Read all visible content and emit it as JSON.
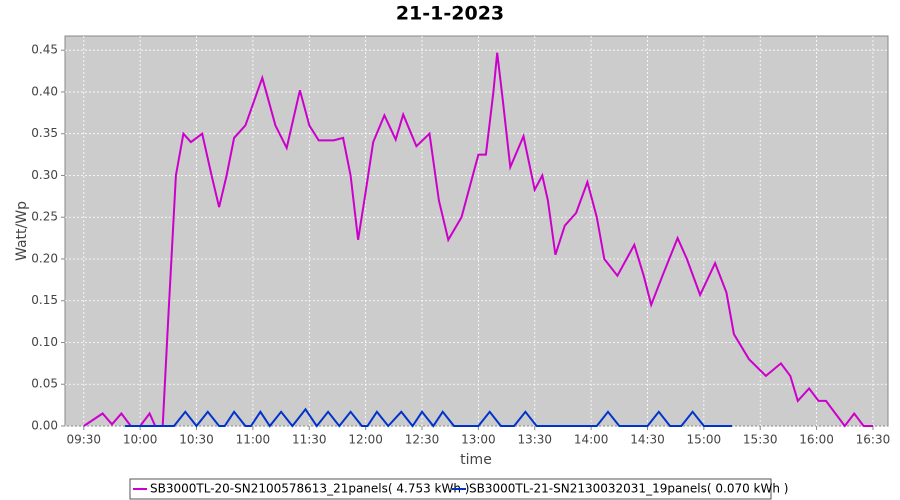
{
  "chart_data": {
    "type": "line",
    "title": "21-1-2023",
    "x_label": "time",
    "y_label": "Watt/Wp",
    "xlim": [
      "09:20",
      "16:38"
    ],
    "xticks": [
      "09:30",
      "10:00",
      "10:30",
      "11:00",
      "11:30",
      "12:00",
      "12:30",
      "13:00",
      "13:30",
      "14:00",
      "14:30",
      "15:00",
      "15:30",
      "16:00",
      "16:30"
    ],
    "ylim": [
      0,
      0.467
    ],
    "yticks": [
      {
        "value": 0,
        "label": "0.00"
      },
      {
        "value": 0.05,
        "label": "0.05"
      },
      {
        "value": 0.1,
        "label": "0.10"
      },
      {
        "value": 0.15,
        "label": "0.15"
      },
      {
        "value": 0.2,
        "label": "0.20"
      },
      {
        "value": 0.25,
        "label": "0.25"
      },
      {
        "value": 0.3,
        "label": "0.30"
      },
      {
        "value": 0.35,
        "label": "0.35"
      },
      {
        "value": 0.4,
        "label": "0.40"
      },
      {
        "value": 0.45,
        "label": "0.45"
      }
    ],
    "grid": true,
    "series": [
      {
        "name": "SB3000TL-20-SN2100578613_21panels( 4.753 kWh )",
        "color": "#cc00cc",
        "x": [
          "09:30",
          "09:40",
          "09:45",
          "09:50",
          "09:55",
          "10:00",
          "10:05",
          "10:08",
          "10:12",
          "10:15",
          "10:19",
          "10:23",
          "10:27",
          "10:33",
          "10:38",
          "10:42",
          "10:46",
          "10:50",
          "10:56",
          "11:05",
          "11:12",
          "11:18",
          "11:25",
          "11:30",
          "11:35",
          "11:43",
          "11:48",
          "11:52",
          "11:56",
          "12:00",
          "12:04",
          "12:10",
          "12:16",
          "12:20",
          "12:27",
          "12:34",
          "12:39",
          "12:44",
          "12:51",
          "13:00",
          "13:04",
          "13:08",
          "13:10",
          "13:13",
          "13:17",
          "13:24",
          "13:30",
          "13:34",
          "13:37",
          "13:41",
          "13:46",
          "13:52",
          "13:58",
          "14:03",
          "14:07",
          "14:14",
          "14:23",
          "14:28",
          "14:32",
          "14:38",
          "14:46",
          "14:51",
          "14:58",
          "15:06",
          "15:12",
          "15:16",
          "15:24",
          "15:33",
          "15:41",
          "15:46",
          "15:50",
          "15:56",
          "16:01",
          "16:05",
          "16:10",
          "16:15",
          "16:20",
          "16:25",
          "16:30"
        ],
        "values": [
          0,
          0.015,
          0.002,
          0.015,
          0,
          0,
          0.015,
          0,
          0,
          0.13,
          0.3,
          0.35,
          0.34,
          0.35,
          0.3,
          0.262,
          0.3,
          0.345,
          0.36,
          0.417,
          0.36,
          0.333,
          0.402,
          0.36,
          0.342,
          0.342,
          0.345,
          0.3,
          0.223,
          0.28,
          0.34,
          0.372,
          0.343,
          0.373,
          0.335,
          0.35,
          0.27,
          0.223,
          0.25,
          0.325,
          0.325,
          0.4,
          0.447,
          0.39,
          0.31,
          0.347,
          0.283,
          0.3,
          0.27,
          0.205,
          0.24,
          0.255,
          0.292,
          0.25,
          0.2,
          0.18,
          0.217,
          0.18,
          0.145,
          0.18,
          0.225,
          0.2,
          0.157,
          0.195,
          0.16,
          0.11,
          0.08,
          0.06,
          0.075,
          0.06,
          0.03,
          0.045,
          0.03,
          0.03,
          0.015,
          0,
          0.015,
          0,
          0
        ]
      },
      {
        "name": "SB3000TL-21-SN2130032031_19panels( 0.070 kWh )",
        "color": "#0033cc",
        "x": [
          "09:52",
          "10:18",
          "10:24",
          "10:30",
          "10:36",
          "10:42",
          "10:45",
          "10:50",
          "10:56",
          "10:59",
          "11:04",
          "11:09",
          "11:15",
          "11:21",
          "11:28",
          "11:34",
          "11:40",
          "11:46",
          "11:52",
          "11:58",
          "12:01",
          "12:06",
          "12:12",
          "12:19",
          "12:25",
          "12:30",
          "12:36",
          "12:41",
          "12:47",
          "13:00",
          "13:06",
          "13:12",
          "13:19",
          "13:25",
          "13:31",
          "14:03",
          "14:09",
          "14:15",
          "14:30",
          "14:36",
          "14:42",
          "14:48",
          "14:54",
          "15:00",
          "15:15"
        ],
        "values": [
          0,
          0,
          0.017,
          0,
          0.017,
          0,
          0,
          0.017,
          0,
          0,
          0.017,
          0,
          0.017,
          0,
          0.02,
          0,
          0.017,
          0,
          0.017,
          0,
          0,
          0.017,
          0,
          0.017,
          0,
          0.017,
          0,
          0.017,
          0,
          0,
          0.017,
          0,
          0,
          0.017,
          0,
          0,
          0.017,
          0,
          0,
          0.017,
          0,
          0,
          0.017,
          0,
          0
        ]
      }
    ]
  }
}
